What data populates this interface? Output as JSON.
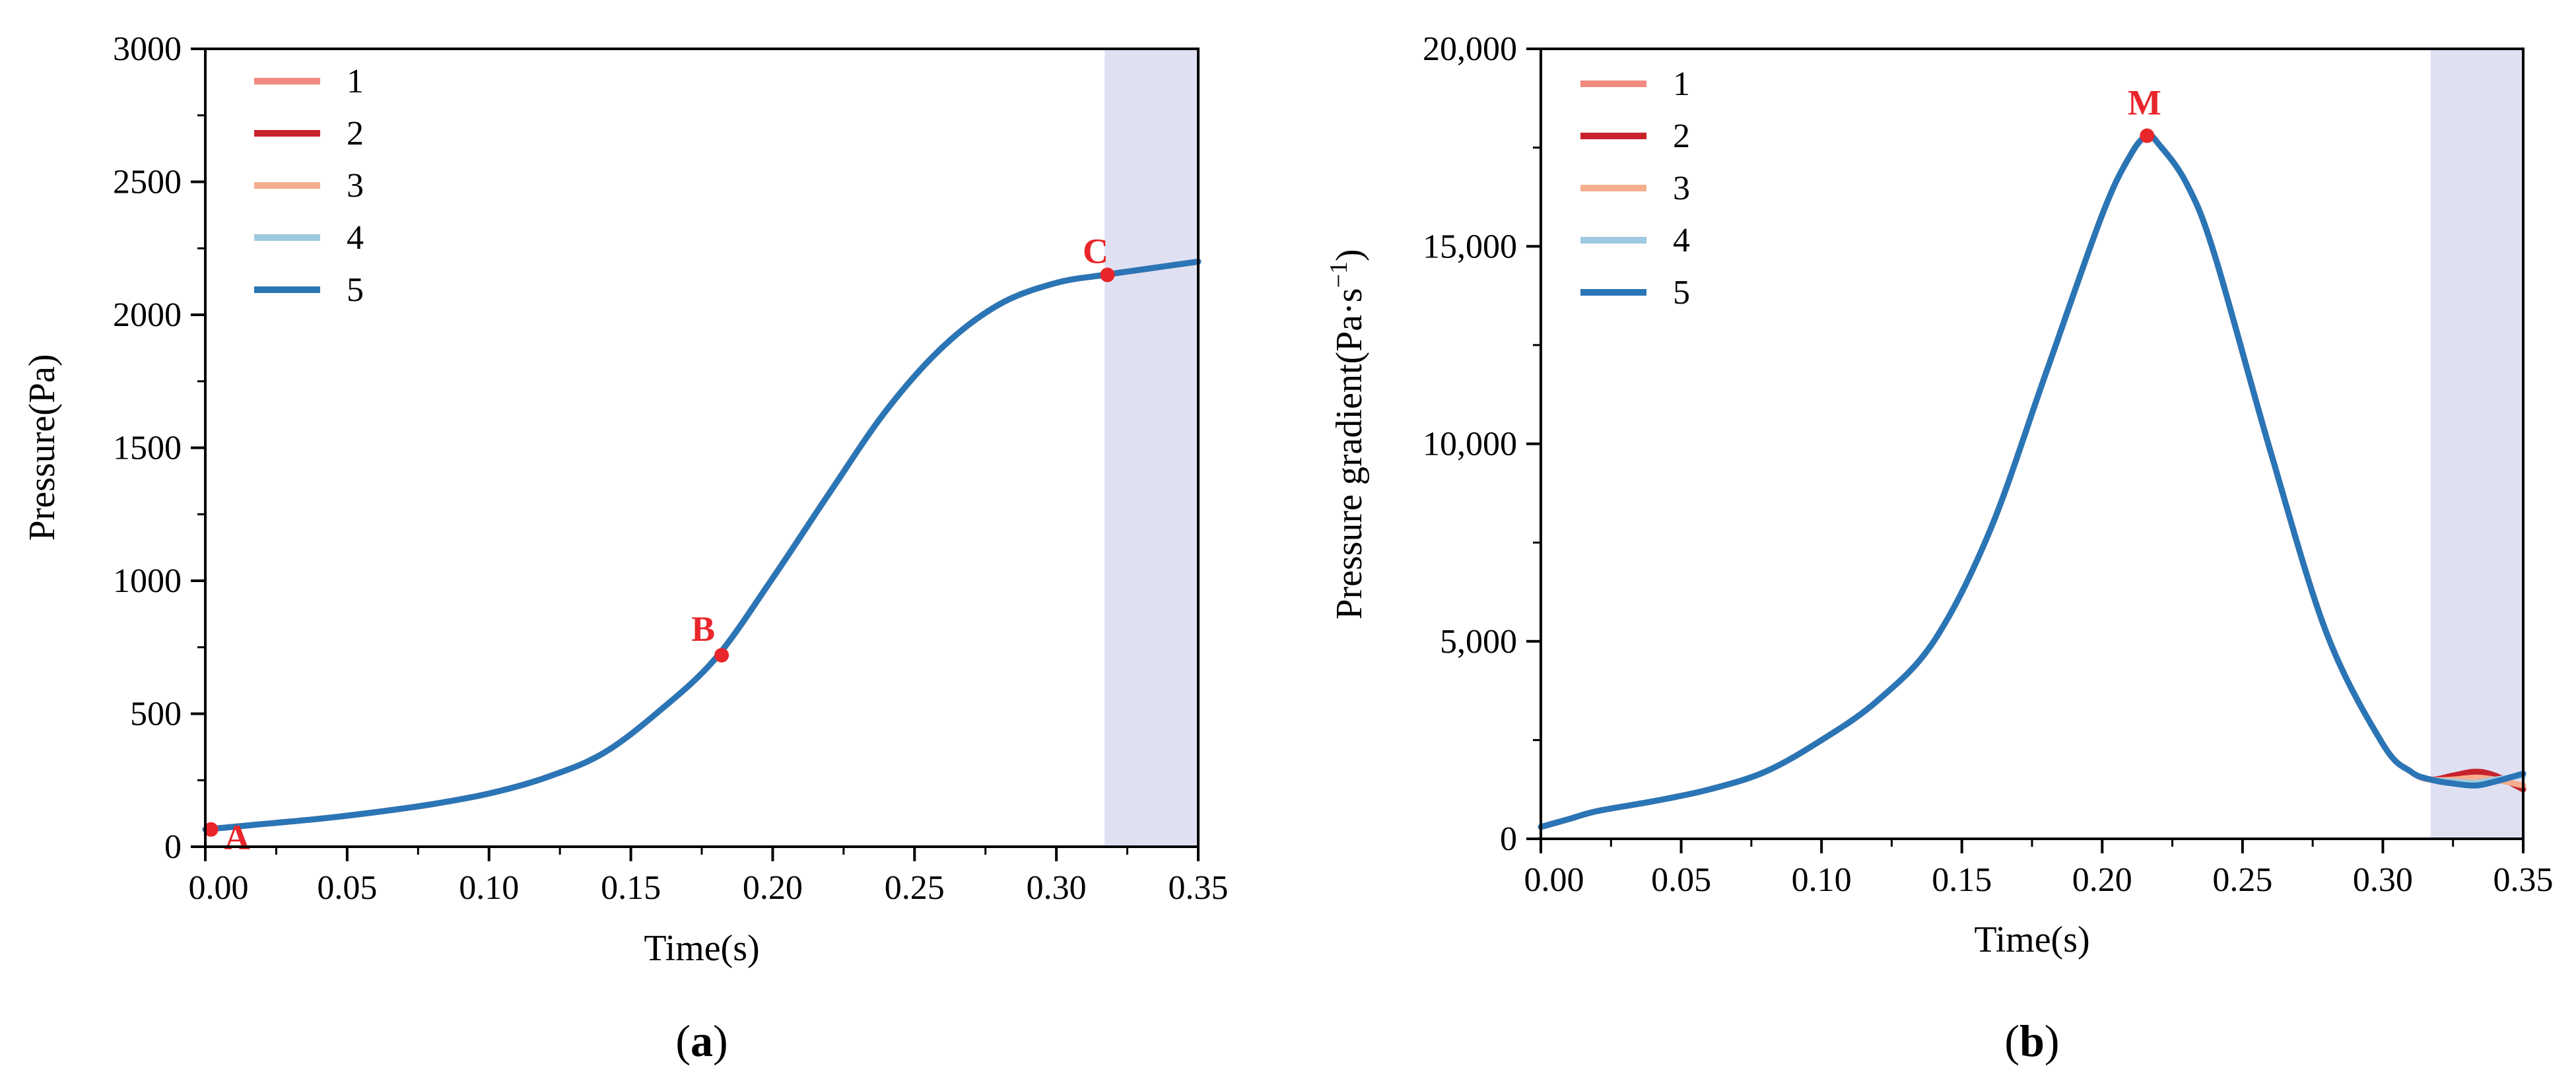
{
  "chart_data": [
    {
      "type": "line",
      "panel_label": "a",
      "xlabel": "Time(s)",
      "ylabel": "Pressure(Pa)",
      "xlim": [
        0,
        0.35
      ],
      "ylim": [
        0,
        3000
      ],
      "x_ticks": [
        "0.00",
        "0.05",
        "0.10",
        "0.15",
        "0.20",
        "0.25",
        "0.30",
        "0.35"
      ],
      "y_ticks": [
        "0",
        "500",
        "1000",
        "1500",
        "2000",
        "2500",
        "3000"
      ],
      "x_tick_values": [
        0,
        0.05,
        0.1,
        0.15,
        0.2,
        0.25,
        0.3,
        0.35
      ],
      "y_tick_values": [
        0,
        500,
        1000,
        1500,
        2000,
        2500,
        3000
      ],
      "grid": false,
      "legend_position": "top-left",
      "shaded_region": {
        "x": [
          0.317,
          0.35
        ],
        "color": "#dfe1f3"
      },
      "x": [
        0.0,
        0.02,
        0.04,
        0.06,
        0.08,
        0.1,
        0.12,
        0.14,
        0.16,
        0.18,
        0.2,
        0.22,
        0.24,
        0.26,
        0.28,
        0.3,
        0.317,
        0.33,
        0.35
      ],
      "series": [
        {
          "name": "1",
          "color": "#f08a80",
          "values": [
            65,
            85,
            105,
            130,
            160,
            200,
            260,
            350,
            510,
            710,
            1010,
            1330,
            1640,
            1880,
            2040,
            2120,
            2150,
            2170,
            2200
          ]
        },
        {
          "name": "2",
          "color": "#c8232d",
          "values": [
            65,
            85,
            105,
            130,
            160,
            200,
            260,
            350,
            510,
            710,
            1010,
            1330,
            1640,
            1880,
            2040,
            2120,
            2150,
            2170,
            2200
          ]
        },
        {
          "name": "3",
          "color": "#f5ad8d",
          "values": [
            65,
            85,
            105,
            130,
            160,
            200,
            260,
            350,
            510,
            710,
            1010,
            1330,
            1640,
            1880,
            2040,
            2120,
            2150,
            2170,
            2200
          ]
        },
        {
          "name": "4",
          "color": "#9ec9e0",
          "values": [
            65,
            85,
            105,
            130,
            160,
            200,
            260,
            350,
            510,
            710,
            1010,
            1330,
            1640,
            1880,
            2040,
            2120,
            2150,
            2170,
            2200
          ]
        },
        {
          "name": "5",
          "color": "#2a75b5",
          "values": [
            65,
            85,
            105,
            130,
            160,
            200,
            260,
            350,
            510,
            710,
            1010,
            1330,
            1640,
            1880,
            2040,
            2120,
            2150,
            2170,
            2200
          ]
        }
      ],
      "annotations": [
        {
          "label": "A",
          "x": 0.002,
          "y": 65
        },
        {
          "label": "B",
          "x": 0.182,
          "y": 720
        },
        {
          "label": "C",
          "x": 0.318,
          "y": 2150
        }
      ],
      "annotation_color": "#e8262b"
    },
    {
      "type": "line",
      "panel_label": "b",
      "xlabel": "Time(s)",
      "ylabel": "Pressure gradient(Pa·s",
      "ylabel_sup": "−1",
      "ylabel_tail": ")",
      "xlim": [
        0,
        0.35
      ],
      "ylim": [
        0,
        20000
      ],
      "x_ticks": [
        "0.00",
        "0.05",
        "0.10",
        "0.15",
        "0.20",
        "0.25",
        "0.30",
        "0.35"
      ],
      "y_ticks": [
        "0",
        "5,000",
        "10,000",
        "15,000",
        "20,000"
      ],
      "x_tick_values": [
        0,
        0.05,
        0.1,
        0.15,
        0.2,
        0.25,
        0.3,
        0.35
      ],
      "y_tick_values": [
        0,
        5000,
        10000,
        15000,
        20000
      ],
      "grid": false,
      "legend_position": "top-left",
      "shaded_region": {
        "x": [
          0.317,
          0.35
        ],
        "color": "#dfe1f3"
      },
      "x": [
        0.0,
        0.01,
        0.02,
        0.04,
        0.06,
        0.08,
        0.1,
        0.12,
        0.14,
        0.16,
        0.18,
        0.2,
        0.21,
        0.216,
        0.22,
        0.23,
        0.24,
        0.26,
        0.28,
        0.3,
        0.31,
        0.317,
        0.325,
        0.333,
        0.34,
        0.35
      ],
      "series": [
        {
          "name": "1",
          "color": "#f08a80",
          "values": [
            300,
            500,
            700,
            950,
            1250,
            1700,
            2500,
            3500,
            5000,
            7800,
            11800,
            15800,
            17300,
            17800,
            17600,
            16600,
            14800,
            9800,
            5200,
            2400,
            1700,
            1500,
            1550,
            1650,
            1550,
            1300
          ]
        },
        {
          "name": "2",
          "color": "#c8232d",
          "values": [
            300,
            500,
            700,
            950,
            1250,
            1700,
            2500,
            3500,
            5000,
            7800,
            11800,
            15800,
            17300,
            17800,
            17600,
            16600,
            14800,
            9800,
            5200,
            2400,
            1700,
            1500,
            1600,
            1700,
            1600,
            1250
          ]
        },
        {
          "name": "3",
          "color": "#f5ad8d",
          "values": [
            300,
            500,
            700,
            950,
            1250,
            1700,
            2500,
            3500,
            5000,
            7800,
            11800,
            15800,
            17300,
            17800,
            17600,
            16600,
            14800,
            9800,
            5200,
            2400,
            1700,
            1500,
            1500,
            1550,
            1500,
            1350
          ]
        },
        {
          "name": "4",
          "color": "#9ec9e0",
          "values": [
            300,
            500,
            700,
            950,
            1250,
            1700,
            2500,
            3500,
            5000,
            7800,
            11800,
            15800,
            17300,
            17800,
            17600,
            16600,
            14800,
            9800,
            5200,
            2400,
            1700,
            1500,
            1450,
            1420,
            1500,
            1600
          ]
        },
        {
          "name": "5",
          "color": "#2a75b5",
          "values": [
            300,
            500,
            700,
            950,
            1250,
            1700,
            2500,
            3500,
            5000,
            7800,
            11800,
            15800,
            17300,
            17800,
            17600,
            16600,
            14800,
            9800,
            5200,
            2400,
            1700,
            1500,
            1400,
            1350,
            1450,
            1650
          ]
        }
      ],
      "annotations": [
        {
          "label": "M",
          "x": 0.216,
          "y": 17800
        }
      ],
      "annotation_color": "#e8262b"
    }
  ]
}
